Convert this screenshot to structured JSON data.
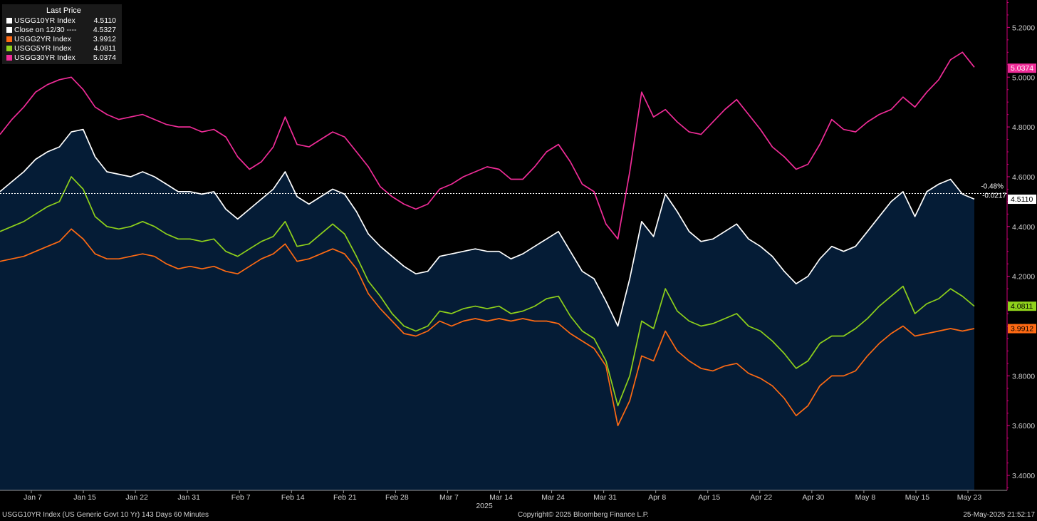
{
  "chart_data": {
    "type": "line",
    "x_tick_labels": [
      "Jan 7",
      "Jan 15",
      "Jan 22",
      "Jan 31",
      "Feb 7",
      "Feb 14",
      "Feb 21",
      "Feb 28",
      "Mar 7",
      "Mar 14",
      "Mar 24",
      "Mar 31",
      "Apr 8",
      "Apr 15",
      "Apr 22",
      "Apr 30",
      "May 8",
      "May 15",
      "May 23"
    ],
    "x_year_label": "2025",
    "y_tick_labels": [
      "3.4000",
      "3.6000",
      "3.8000",
      "4.0000",
      "4.2000",
      "4.4000",
      "4.6000",
      "4.8000",
      "5.0000",
      "5.2000"
    ],
    "ylim": [
      3.34,
      5.31
    ],
    "legend": {
      "title": "Last Price",
      "placement": "top-left",
      "entries": [
        {
          "name": "USGG10YR Index",
          "value": "4.5110",
          "color": "#ffffff"
        },
        {
          "name": "Close on 12/30 ----",
          "value": "4.5327",
          "color": "#ffffff"
        },
        {
          "name": "USGG2YR Index",
          "value": "3.9912",
          "color": "#ff6a13"
        },
        {
          "name": "USGG5YR Index",
          "value": "4.0811",
          "color": "#8fd11b"
        },
        {
          "name": "USGG30YR Index",
          "value": "5.0374",
          "color": "#f02c98"
        }
      ]
    },
    "reference_line": {
      "label": "Close on 12/30",
      "value": 4.5327,
      "change_pct": "-0.48%",
      "change_abs": "-0.0217"
    },
    "last_value_tags": [
      {
        "series": "USGG30YR Index",
        "text": "5.0374",
        "value": 5.0374,
        "color": "#f02c98",
        "text_color": "#ffffff"
      },
      {
        "series": "USGG10YR Index",
        "text": "4.5110",
        "value": 4.511,
        "color": "#ffffff",
        "text_color": "#000000"
      },
      {
        "series": "USGG5YR Index",
        "text": "4.0811",
        "value": 4.0811,
        "color": "#8fd11b",
        "text_color": "#000000"
      },
      {
        "series": "USGG2YR Index",
        "text": "3.9912",
        "value": 3.9912,
        "color": "#ff6a13",
        "text_color": "#000000"
      }
    ],
    "series": [
      {
        "name": "USGG30YR Index",
        "color": "#f02c98",
        "values": [
          4.77,
          4.83,
          4.88,
          4.94,
          4.97,
          4.99,
          5.0,
          4.95,
          4.88,
          4.85,
          4.83,
          4.84,
          4.85,
          4.83,
          4.81,
          4.8,
          4.8,
          4.78,
          4.79,
          4.76,
          4.68,
          4.63,
          4.66,
          4.72,
          4.84,
          4.73,
          4.72,
          4.75,
          4.78,
          4.76,
          4.7,
          4.64,
          4.56,
          4.52,
          4.49,
          4.47,
          4.49,
          4.55,
          4.57,
          4.6,
          4.62,
          4.64,
          4.63,
          4.59,
          4.59,
          4.64,
          4.7,
          4.73,
          4.66,
          4.57,
          4.54,
          4.41,
          4.35,
          4.62,
          4.94,
          4.84,
          4.87,
          4.82,
          4.78,
          4.77,
          4.82,
          4.87,
          4.91,
          4.85,
          4.79,
          4.72,
          4.68,
          4.63,
          4.65,
          4.73,
          4.83,
          4.79,
          4.78,
          4.82,
          4.85,
          4.87,
          4.92,
          4.88,
          4.94,
          4.99,
          5.07,
          5.1,
          5.04
        ]
      },
      {
        "name": "USGG10YR Index",
        "color": "#ffffff",
        "values": [
          4.54,
          4.58,
          4.62,
          4.67,
          4.7,
          4.72,
          4.78,
          4.79,
          4.68,
          4.62,
          4.61,
          4.6,
          4.62,
          4.6,
          4.57,
          4.54,
          4.54,
          4.53,
          4.54,
          4.47,
          4.43,
          4.47,
          4.51,
          4.55,
          4.62,
          4.52,
          4.49,
          4.52,
          4.55,
          4.53,
          4.46,
          4.37,
          4.32,
          4.28,
          4.24,
          4.21,
          4.22,
          4.28,
          4.29,
          4.3,
          4.31,
          4.3,
          4.3,
          4.27,
          4.29,
          4.32,
          4.35,
          4.38,
          4.3,
          4.22,
          4.19,
          4.1,
          4.0,
          4.19,
          4.42,
          4.36,
          4.53,
          4.46,
          4.38,
          4.34,
          4.35,
          4.38,
          4.41,
          4.35,
          4.32,
          4.28,
          4.22,
          4.17,
          4.2,
          4.27,
          4.32,
          4.3,
          4.32,
          4.38,
          4.44,
          4.5,
          4.54,
          4.44,
          4.54,
          4.57,
          4.59,
          4.53,
          4.51
        ]
      },
      {
        "name": "USGG5YR Index",
        "color": "#8fd11b",
        "values": [
          4.38,
          4.4,
          4.42,
          4.45,
          4.48,
          4.5,
          4.6,
          4.55,
          4.44,
          4.4,
          4.39,
          4.4,
          4.42,
          4.4,
          4.37,
          4.35,
          4.35,
          4.34,
          4.35,
          4.3,
          4.28,
          4.31,
          4.34,
          4.36,
          4.42,
          4.32,
          4.33,
          4.37,
          4.41,
          4.37,
          4.28,
          4.18,
          4.12,
          4.05,
          4.0,
          3.98,
          4.0,
          4.06,
          4.05,
          4.07,
          4.08,
          4.07,
          4.08,
          4.05,
          4.06,
          4.08,
          4.11,
          4.12,
          4.04,
          3.98,
          3.95,
          3.86,
          3.68,
          3.8,
          4.02,
          3.99,
          4.15,
          4.06,
          4.02,
          4.0,
          4.01,
          4.03,
          4.05,
          4.0,
          3.98,
          3.94,
          3.89,
          3.83,
          3.86,
          3.93,
          3.96,
          3.96,
          3.99,
          4.03,
          4.08,
          4.12,
          4.16,
          4.05,
          4.09,
          4.11,
          4.15,
          4.12,
          4.08
        ]
      },
      {
        "name": "USGG2YR Index",
        "color": "#ff6a13",
        "values": [
          4.26,
          4.27,
          4.28,
          4.3,
          4.32,
          4.34,
          4.39,
          4.35,
          4.29,
          4.27,
          4.27,
          4.28,
          4.29,
          4.28,
          4.25,
          4.23,
          4.24,
          4.23,
          4.24,
          4.22,
          4.21,
          4.24,
          4.27,
          4.29,
          4.33,
          4.26,
          4.27,
          4.29,
          4.31,
          4.29,
          4.23,
          4.13,
          4.07,
          4.02,
          3.97,
          3.96,
          3.98,
          4.02,
          4.0,
          4.02,
          4.03,
          4.02,
          4.03,
          4.02,
          4.03,
          4.02,
          4.02,
          4.01,
          3.97,
          3.94,
          3.91,
          3.84,
          3.6,
          3.7,
          3.88,
          3.86,
          3.98,
          3.9,
          3.86,
          3.83,
          3.82,
          3.84,
          3.85,
          3.81,
          3.79,
          3.76,
          3.71,
          3.64,
          3.68,
          3.76,
          3.8,
          3.8,
          3.82,
          3.88,
          3.93,
          3.97,
          4.0,
          3.96,
          3.97,
          3.98,
          3.99,
          3.98,
          3.99
        ]
      }
    ],
    "shaded_area_series": "USGG10YR Index",
    "grid": false
  },
  "footer": {
    "left": "USGG10YR Index (US Generic Govt 10 Yr) 143 Days 60 Minutes",
    "center": "Copyright© 2025 Bloomberg Finance L.P.",
    "right": "25-May-2025 21:52:17"
  }
}
